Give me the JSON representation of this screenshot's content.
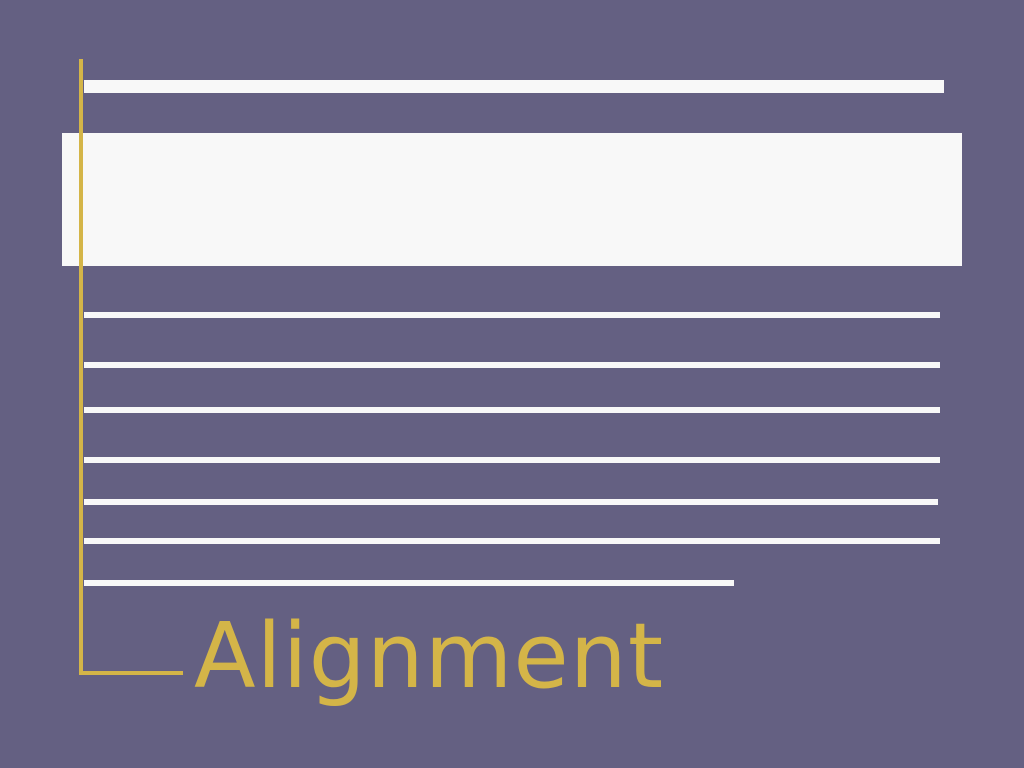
{
  "colors": {
    "background": "#646082",
    "bars": "#f8f8f8",
    "accent": "#d4b548"
  },
  "label": {
    "text": "Alignment"
  }
}
